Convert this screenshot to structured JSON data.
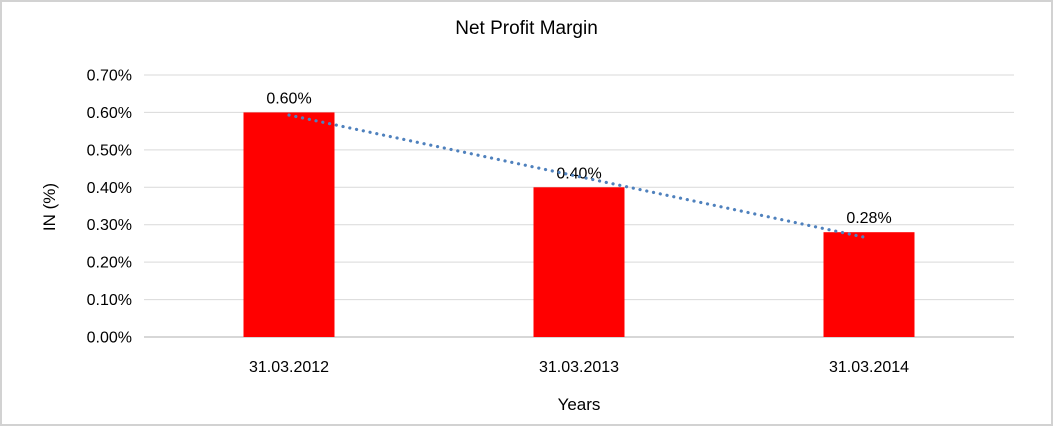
{
  "chart": {
    "title": "Net Profit Margin",
    "y_axis_title": "IN (%)",
    "x_axis_title": "Years"
  },
  "chart_data": {
    "type": "bar",
    "title": "Net Profit Margin",
    "categories": [
      "31.03.2012",
      "31.03.2013",
      "31.03.2014"
    ],
    "values": [
      0.6,
      0.4,
      0.28
    ],
    "data_labels": [
      "0.60%",
      "0.40%",
      "0.28%"
    ],
    "xlabel": "Years",
    "ylabel": "IN (%)",
    "ylim": [
      0,
      0.7
    ],
    "ytick_step": 0.1,
    "ytick_labels": [
      "0.00%",
      "0.10%",
      "0.20%",
      "0.30%",
      "0.40%",
      "0.50%",
      "0.60%",
      "0.70%"
    ],
    "grid": true,
    "legend": "none",
    "bar_color": "#FF0000",
    "gridline_color": "#d9d9d9",
    "axis_line_color": "#bfbfbf",
    "trendline": {
      "type": "linear",
      "style": "dotted",
      "color": "#4F81BD",
      "start_value": 0.593,
      "end_value": 0.264
    }
  }
}
